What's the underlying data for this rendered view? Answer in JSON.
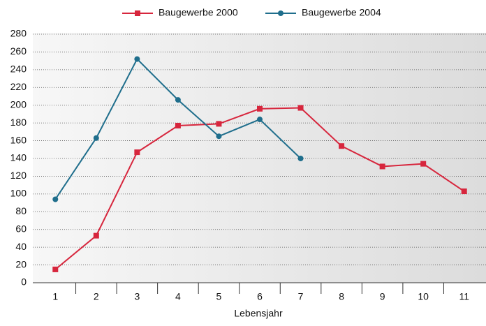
{
  "chart_data": {
    "type": "line",
    "x_label": "Lebensjahr",
    "categories": [
      "1",
      "2",
      "3",
      "4",
      "5",
      "6",
      "7",
      "8",
      "9",
      "10",
      "11"
    ],
    "series": [
      {
        "name": "Baugewerbe 2000",
        "color": "#d7263d",
        "marker": "square",
        "values": [
          15,
          53,
          147,
          177,
          179,
          196,
          197,
          154,
          131,
          134,
          103
        ]
      },
      {
        "name": "Baugewerbe 2004",
        "color": "#1f6e8c",
        "marker": "circle",
        "values": [
          94,
          163,
          252,
          206,
          165,
          184,
          140,
          null,
          null,
          null,
          null
        ]
      }
    ],
    "ylim": [
      0,
      280
    ],
    "yticks": [
      0,
      20,
      40,
      60,
      80,
      100,
      120,
      140,
      160,
      180,
      200,
      220,
      240,
      260,
      280
    ],
    "grid": true,
    "legend": "top"
  }
}
